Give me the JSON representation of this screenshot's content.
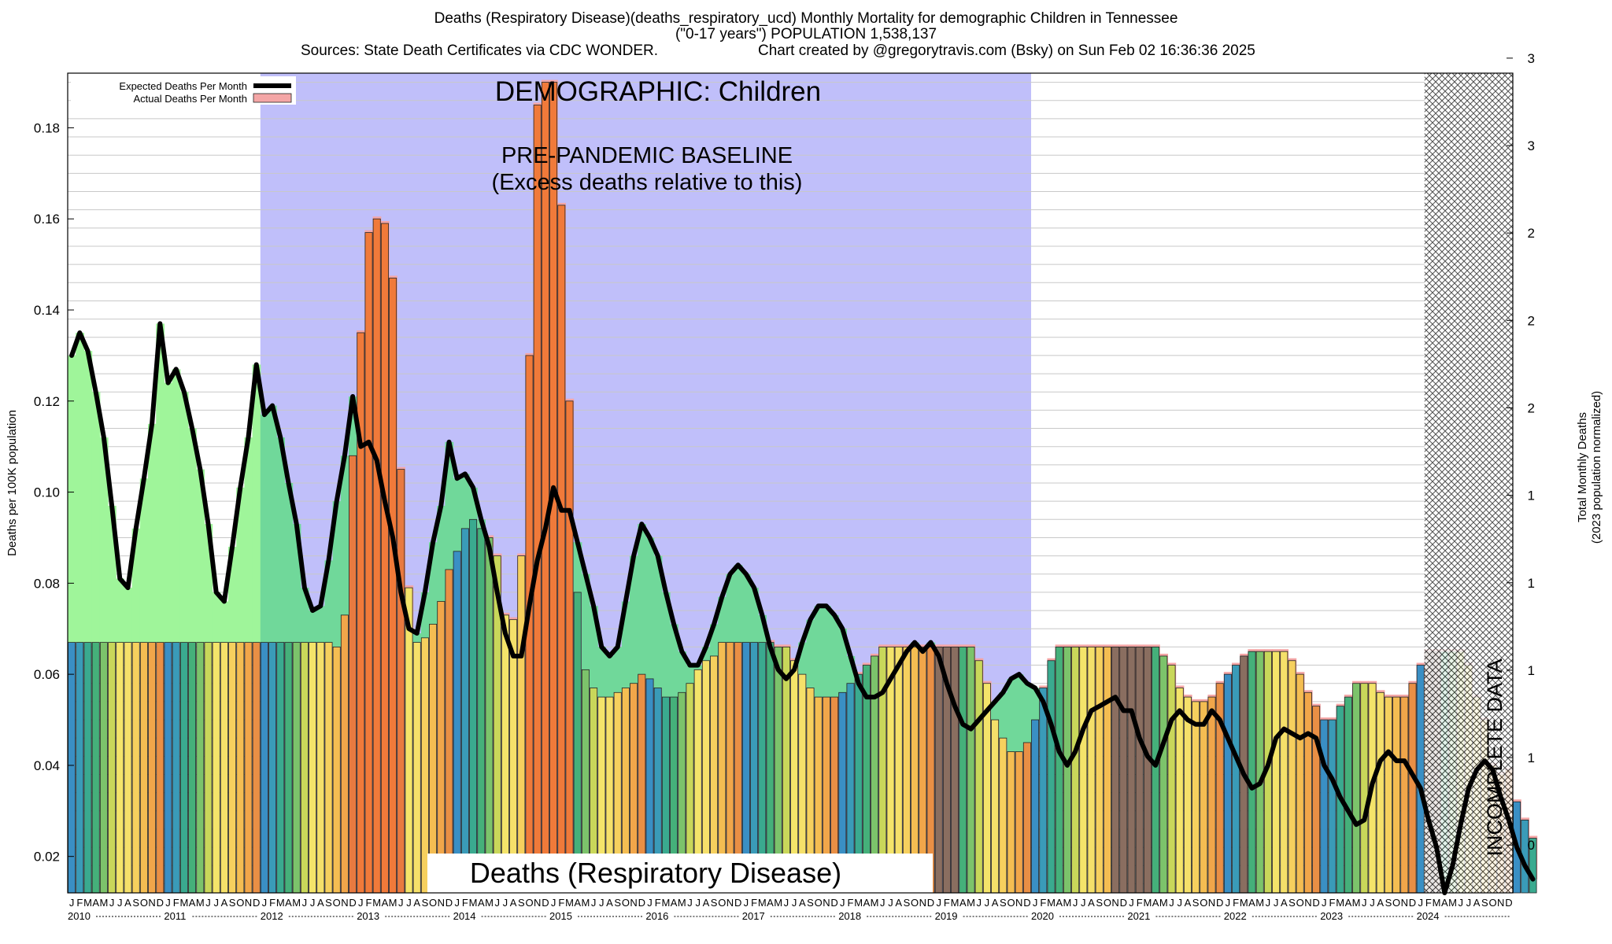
{
  "header": {
    "title": "Deaths (Respiratory Disease)(deaths_respiratory_ucd) Monthly Mortality for demographic Children in Tennessee",
    "subtitle": "(\"0-17 years\") POPULATION 1,538,137",
    "sources": "Sources: State Death Certificates via CDC WONDER.",
    "credit": "Chart created by @gregorytravis.com (Bsky) on Sun Feb 02 16:36:36 2025"
  },
  "chart_data": {
    "type": "bar",
    "title": "Deaths (Respiratory Disease)(deaths_respiratory_ucd) Monthly Mortality for demographic Children in Tennessee",
    "ylabel": "Deaths per 100K population",
    "y2label_line1": "Total Monthly Deaths",
    "y2label_line2": "(2023 population normalized)",
    "ylim": [
      0.012,
      0.192
    ],
    "y_ticks": [
      "0.02",
      "0.04",
      "0.06",
      "0.08",
      "0.10",
      "0.12",
      "0.14",
      "0.16",
      "0.18"
    ],
    "y_tick_values": [
      0.02,
      0.04,
      0.06,
      0.08,
      0.1,
      0.12,
      0.14,
      0.16,
      0.18
    ],
    "y2_ticks": [
      "0",
      "1",
      "1",
      "1",
      "1",
      "2",
      "2",
      "2",
      "3",
      "3"
    ],
    "y2_tick_values": [
      0.0225,
      0.0417,
      0.0609,
      0.0801,
      0.0993,
      0.1185,
      0.1377,
      0.1569,
      0.1761,
      0.1953
    ],
    "month_letters": [
      "J",
      "F",
      "M",
      "A",
      "M",
      "J",
      "J",
      "A",
      "S",
      "O",
      "N",
      "D"
    ],
    "years": [
      "2010",
      "2011",
      "2012",
      "2013",
      "2014",
      "2015",
      "2016",
      "2017",
      "2018",
      "2019",
      "2020",
      "2021",
      "2022",
      "2023",
      "2024"
    ],
    "legend": {
      "position": "top-left",
      "entries": [
        {
          "label": "Expected Deaths Per Month",
          "swatch": "#000000"
        },
        {
          "label": "Actual Deaths Per Month",
          "swatch": "#f4a6a6"
        }
      ]
    },
    "annotations": {
      "demographic": "DEMOGRAPHIC: Children",
      "baseline_line1": "PRE-PANDEMIC BASELINE",
      "baseline_line2": "(Excess deaths relative to this)",
      "cause_label": "Deaths (Respiratory Disease)",
      "incomplete": "INCOMPLETE DATA"
    },
    "baseline_period": {
      "start_year": 2012,
      "start_month": 1,
      "end_year": 2019,
      "end_month": 12
    },
    "incomplete_period": {
      "start_year": 2024,
      "start_month": 2,
      "end_year": 2024,
      "end_month": 12
    },
    "series": [
      {
        "name": "Actual Deaths Per Month",
        "values": [
          0.067,
          0.067,
          0.067,
          0.067,
          0.067,
          0.067,
          0.067,
          0.067,
          0.067,
          0.067,
          0.067,
          0.067,
          0.067,
          0.067,
          0.067,
          0.067,
          0.067,
          0.067,
          0.067,
          0.067,
          0.067,
          0.067,
          0.067,
          0.067,
          0.067,
          0.067,
          0.067,
          0.067,
          0.067,
          0.067,
          0.067,
          0.067,
          0.067,
          0.066,
          0.073,
          0.108,
          0.135,
          0.157,
          0.16,
          0.159,
          0.147,
          0.105,
          0.079,
          0.067,
          0.068,
          0.071,
          0.076,
          0.083,
          0.087,
          0.092,
          0.094,
          0.092,
          0.09,
          0.086,
          0.073,
          0.072,
          0.086,
          0.13,
          0.185,
          0.19,
          0.19,
          0.163,
          0.12,
          0.078,
          0.061,
          0.057,
          0.055,
          0.055,
          0.056,
          0.057,
          0.058,
          0.06,
          0.059,
          0.057,
          0.055,
          0.055,
          0.056,
          0.058,
          0.061,
          0.063,
          0.064,
          0.067,
          0.067,
          0.067,
          0.067,
          0.067,
          0.067,
          0.067,
          0.066,
          0.066,
          0.063,
          0.06,
          0.057,
          0.055,
          0.055,
          0.055,
          0.056,
          0.058,
          0.06,
          0.062,
          0.064,
          0.066,
          0.066,
          0.066,
          0.066,
          0.066,
          0.066,
          0.066,
          0.066,
          0.066,
          0.066,
          0.066,
          0.066,
          0.063,
          0.058,
          0.05,
          0.046,
          0.043,
          0.043,
          0.045,
          0.05,
          0.057,
          0.063,
          0.066,
          0.066,
          0.066,
          0.066,
          0.066,
          0.066,
          0.066,
          0.066,
          0.066,
          0.066,
          0.066,
          0.066,
          0.066,
          0.064,
          0.062,
          0.057,
          0.055,
          0.054,
          0.054,
          0.055,
          0.058,
          0.06,
          0.062,
          0.064,
          0.065,
          0.065,
          0.065,
          0.065,
          0.065,
          0.063,
          0.06,
          0.056,
          0.053,
          0.05,
          0.05,
          0.053,
          0.055,
          0.058,
          0.058,
          0.058,
          0.056,
          0.055,
          0.055,
          0.055,
          0.058,
          0.062,
          0.065,
          0.065,
          0.065,
          0.065,
          0.065,
          0.062,
          0.055,
          0.05,
          0.04,
          0.038,
          0.039,
          0.032,
          0.028,
          0.024
        ]
      },
      {
        "name": "Expected Deaths Per Month",
        "values": [
          0.13,
          0.135,
          0.131,
          0.122,
          0.112,
          0.097,
          0.081,
          0.079,
          0.092,
          0.103,
          0.115,
          0.137,
          0.124,
          0.127,
          0.122,
          0.114,
          0.105,
          0.093,
          0.078,
          0.076,
          0.088,
          0.101,
          0.112,
          0.128,
          0.117,
          0.119,
          0.112,
          0.102,
          0.093,
          0.079,
          0.074,
          0.075,
          0.085,
          0.098,
          0.108,
          0.121,
          0.11,
          0.111,
          0.107,
          0.098,
          0.09,
          0.078,
          0.07,
          0.069,
          0.078,
          0.089,
          0.097,
          0.111,
          0.103,
          0.104,
          0.101,
          0.094,
          0.088,
          0.078,
          0.069,
          0.064,
          0.064,
          0.075,
          0.085,
          0.092,
          0.101,
          0.096,
          0.096,
          0.089,
          0.082,
          0.075,
          0.066,
          0.064,
          0.066,
          0.076,
          0.086,
          0.093,
          0.09,
          0.086,
          0.078,
          0.071,
          0.065,
          0.062,
          0.062,
          0.066,
          0.071,
          0.077,
          0.082,
          0.084,
          0.082,
          0.079,
          0.073,
          0.066,
          0.061,
          0.059,
          0.061,
          0.067,
          0.072,
          0.075,
          0.075,
          0.073,
          0.07,
          0.064,
          0.058,
          0.055,
          0.055,
          0.056,
          0.059,
          0.062,
          0.065,
          0.067,
          0.065,
          0.067,
          0.064,
          0.058,
          0.053,
          0.049,
          0.048,
          0.05,
          0.052,
          0.054,
          0.056,
          0.059,
          0.06,
          0.058,
          0.057,
          0.054,
          0.049,
          0.043,
          0.04,
          0.043,
          0.048,
          0.052,
          0.053,
          0.054,
          0.055,
          0.052,
          0.052,
          0.046,
          0.042,
          0.04,
          0.045,
          0.05,
          0.052,
          0.05,
          0.049,
          0.049,
          0.052,
          0.05,
          0.046,
          0.042,
          0.038,
          0.035,
          0.036,
          0.04,
          0.046,
          0.048,
          0.047,
          0.046,
          0.047,
          0.046,
          0.04,
          0.037,
          0.033,
          0.03,
          0.027,
          0.028,
          0.036,
          0.041,
          0.043,
          0.041,
          0.041,
          0.038,
          0.035,
          0.028,
          0.022,
          0.012,
          0.018,
          0.027,
          0.035,
          0.039,
          0.041,
          0.039,
          0.033,
          0.028,
          0.022,
          0.018,
          0.015
        ]
      }
    ]
  }
}
